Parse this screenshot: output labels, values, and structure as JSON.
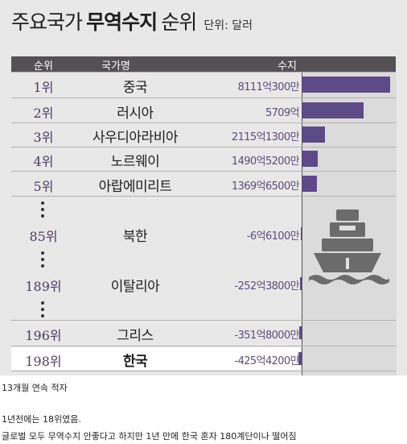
{
  "header": {
    "title_prefix": "주요국가",
    "title_bold": "무역수지",
    "title_suffix": "순위",
    "unit": "단위: 달러"
  },
  "table_header": {
    "rank": "순위",
    "country": "국가명",
    "balance": "수지"
  },
  "chart_data": {
    "type": "bar",
    "unit": "달러",
    "rows": [
      {
        "rank_label": "1위",
        "country": "중국",
        "value_label": "8111억300만",
        "value_100m_usd": 8111.03
      },
      {
        "rank_label": "2위",
        "country": "러시아",
        "value_label": "5709억",
        "value_100m_usd": 5709
      },
      {
        "rank_label": "3위",
        "country": "사우디아라비아",
        "value_label": "2115억1300만",
        "value_100m_usd": 2115.13
      },
      {
        "rank_label": "4위",
        "country": "노르웨이",
        "value_label": "1490억5200만",
        "value_100m_usd": 1490.52
      },
      {
        "rank_label": "5위",
        "country": "아랍에미리트",
        "value_label": "1369억6500만",
        "value_100m_usd": 1369.65
      },
      {
        "rank_label": "85위",
        "country": "북한",
        "value_label": "-6억6100만",
        "value_100m_usd": -6.61
      },
      {
        "rank_label": "189위",
        "country": "이탈리아",
        "value_label": "-252억3800만",
        "value_100m_usd": -252.38
      },
      {
        "rank_label": "196위",
        "country": "그리스",
        "value_label": "-351억8000만",
        "value_100m_usd": -351.8
      },
      {
        "rank_label": "198위",
        "country": "한국",
        "value_label": "-425억4200만",
        "value_100m_usd": -425.42,
        "highlight": true
      }
    ]
  },
  "icon": "cargo-ship-icon",
  "colors": {
    "bar": "#5e4a86",
    "header_bg": "#545155",
    "background": "#e9e8e8"
  },
  "captions": [
    "13개월 연속 적자",
    "1년전에는 18위였음.",
    "글로벌 모두 무역수지 안좋다고 하지만 1년 만에 한국 혼자 180계단이나 떨어짐"
  ]
}
